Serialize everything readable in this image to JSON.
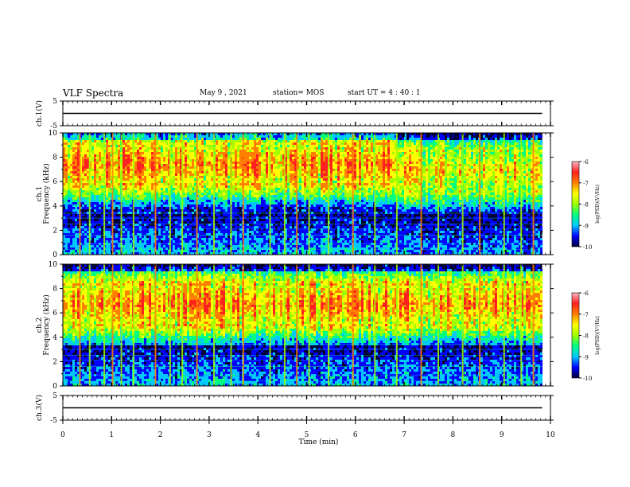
{
  "header": {
    "title": "VLF Spectra",
    "date": "May 9 , 2021",
    "station": "station= MOS",
    "start_ut": "start UT = 4 : 40 : 1"
  },
  "chart_data": [
    {
      "type": "line",
      "name": "ch1-waveform",
      "ylabel": "ch.1(V)",
      "ylim": [
        -5,
        5
      ],
      "y_ticks": [
        "5",
        "-5"
      ],
      "baseline": 0
    },
    {
      "type": "heatmap",
      "name": "ch1-spectrogram",
      "ylabel": "ch.1\nFrequency (kHz)",
      "ylim": [
        0,
        10
      ],
      "y_ticks": [
        "0",
        "2",
        "4",
        "6",
        "8",
        "10"
      ],
      "colorbar": {
        "label": "log(PSD)(V²/Hz)",
        "ticks": [
          "-6",
          "-7",
          "-8",
          "-9",
          "-10"
        ],
        "range": [
          -10,
          -6
        ]
      },
      "band_center_khz": 7.5,
      "band_shift_at_min": 6.85,
      "band_center_after_shift_khz": 7.0,
      "spikes_min": [
        0.35,
        0.55,
        0.85,
        1.02,
        1.2,
        1.45,
        1.9,
        2.2,
        2.45,
        2.75,
        3.1,
        3.45,
        3.7,
        4.25,
        4.55,
        4.8,
        5.05,
        5.45,
        5.95,
        6.4,
        6.85,
        7.35,
        7.7,
        8.2,
        8.55,
        9.05,
        9.4,
        9.65
      ]
    },
    {
      "type": "heatmap",
      "name": "ch2-spectrogram",
      "ylabel": "ch.2\nFrequency (kHz)",
      "ylim": [
        0,
        10
      ],
      "y_ticks": [
        "0",
        "2",
        "4",
        "6",
        "8",
        "10"
      ],
      "colorbar": {
        "label": "log(PSD)(V²/Hz)",
        "ticks": [
          "-6",
          "-7",
          "-8",
          "-9",
          "-10"
        ],
        "range": [
          -10,
          -6
        ]
      },
      "band_center_khz": 6.8,
      "spikes_min": [
        0.35,
        0.55,
        0.85,
        1.02,
        1.2,
        1.45,
        1.9,
        2.2,
        2.45,
        2.75,
        3.1,
        3.45,
        3.7,
        4.25,
        4.55,
        4.8,
        5.05,
        5.45,
        5.95,
        6.4,
        6.85,
        7.35,
        7.7,
        8.2,
        8.55,
        9.05,
        9.4,
        9.65
      ]
    },
    {
      "type": "line",
      "name": "ch3-waveform",
      "ylabel": "ch.3(V)",
      "ylim": [
        -5,
        5
      ],
      "y_ticks": [
        "5",
        "-5"
      ],
      "baseline": 0
    }
  ],
  "x_axis": {
    "label": "Time (min)",
    "xlim": [
      0,
      10
    ],
    "ticks": [
      "0",
      "1",
      "2",
      "3",
      "4",
      "5",
      "6",
      "7",
      "8",
      "9",
      "10"
    ],
    "data_end_min": 9.83
  },
  "colors": {
    "scale": [
      "#00003a",
      "#0000ff",
      "#00c8ff",
      "#00ff80",
      "#a0ff00",
      "#ffff00",
      "#ff8000",
      "#ff2020",
      "#ffb4c0"
    ]
  }
}
